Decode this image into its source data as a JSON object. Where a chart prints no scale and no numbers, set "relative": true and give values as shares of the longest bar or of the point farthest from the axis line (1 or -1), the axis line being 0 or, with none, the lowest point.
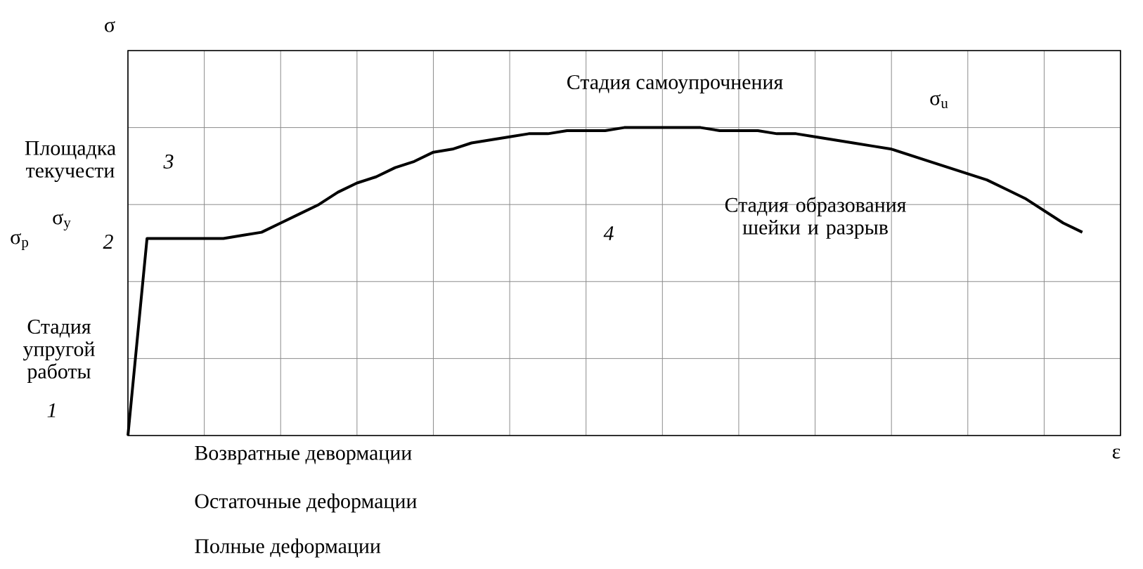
{
  "chart_data": {
    "type": "line",
    "relative": true,
    "xlabel": "ε",
    "ylabel": "σ",
    "grid": true,
    "marker": "none",
    "line_style": "solid",
    "categories": [
      null,
      null,
      null,
      null,
      null,
      null,
      null,
      null,
      null,
      null,
      null,
      null,
      null,
      null,
      null,
      null,
      null,
      null,
      null,
      null,
      null,
      null,
      null,
      null,
      null,
      null,
      null,
      null,
      null,
      null,
      null,
      null,
      null,
      null,
      null,
      null,
      null,
      null,
      null,
      null,
      null,
      null,
      null,
      null,
      null,
      null,
      null,
      null,
      null,
      null,
      null
    ],
    "series": [
      {
        "color": "#000000",
        "values": [
          0,
          0.64,
          0.64,
          0.64,
          0.64,
          0.64,
          0.65,
          0.66,
          0.69,
          0.72,
          0.75,
          0.79,
          0.82,
          0.84,
          0.87,
          0.89,
          0.92,
          0.93,
          0.95,
          0.96,
          0.97,
          0.98,
          0.98,
          0.99,
          0.99,
          0.99,
          1,
          1,
          1,
          1,
          1,
          0.99,
          0.99,
          0.99,
          0.98,
          0.98,
          0.97,
          0.96,
          0.95,
          0.94,
          0.93,
          0.91,
          0.89,
          0.87,
          0.85,
          0.83,
          0.8,
          0.77,
          0.73,
          0.69,
          0.66
        ]
      }
    ],
    "annotations": [
      "Площадка текучести",
      "3",
      "σ$_{y}$",
      "2",
      "Стадия упругой работы",
      "1",
      "4",
      "Стадия самоупрочнения",
      "σ$_{u}$",
      "Стадия образования шейки и разрыв",
      "Возвратные девормации",
      "Остаточные деформации",
      "Полные деформации",
      "σ$_{p}$"
    ]
  }
}
